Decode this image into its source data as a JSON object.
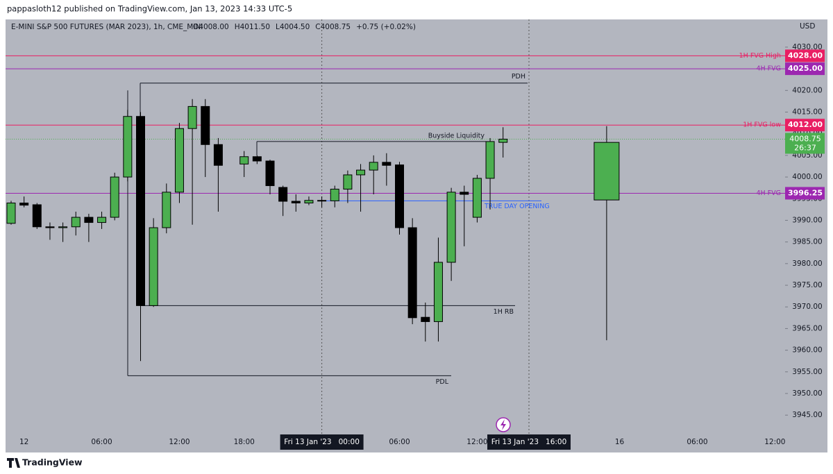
{
  "chart_data": {
    "type": "candlestick",
    "published": "pappasloth12 published on TradingView.com, Jan 13, 2023 14:33 UTC-5",
    "symbol": "E-MINI S&P 500 FUTURES (MAR 2023), 1h, CME_MINI",
    "ohlc_legend": [
      "O4008.00",
      "H4011.50",
      "L4004.50",
      "C4008.75",
      "+0.75 (+0.02%)"
    ],
    "currency": "USD",
    "brand": "TradingView",
    "up_color": "#4caf50",
    "down_color": "#000000",
    "categories": [
      null,
      "12",
      null,
      null,
      null,
      null,
      null,
      "06:00",
      null,
      null,
      null,
      null,
      null,
      "12:00",
      null,
      null,
      null,
      null,
      "18:00",
      null,
      null,
      null,
      null,
      null,
      "Fri 13 Jan '23   00:00",
      null,
      null,
      null,
      null,
      null,
      "06:00",
      null,
      null,
      null,
      null,
      null,
      "12:00",
      null,
      null,
      null,
      "Fri 13 Jan '23   16:00",
      null,
      null,
      null,
      null,
      null,
      null,
      "16",
      null,
      null,
      null,
      null,
      null,
      "06:00",
      null,
      null,
      null,
      null,
      null,
      "12:00"
    ],
    "open": [
      3989.3,
      3994,
      3993.6,
      3988.5,
      3988.3,
      3988.5,
      3990.7,
      3989.5,
      3990.7,
      4000,
      4014,
      3970.3,
      3988.3,
      3996.5,
      4011.2,
      4016.3,
      4007.5,
      null,
      4003,
      4004.7,
      4003.7,
      3997.6,
      3994.4,
      3994,
      3994.6,
      3994.5,
      3997.2,
      4000.5,
      4001.6,
      4003.4,
      4002.8,
      3988.3,
      3967.6,
      3966.6,
      3980.3,
      3996.5,
      3990.7,
      3999.7,
      4008,
      null,
      null,
      null,
      null,
      null,
      null,
      null,
      null,
      null,
      null,
      null,
      null,
      null,
      null,
      null,
      null,
      null,
      null,
      null,
      null,
      null
    ],
    "high": [
      3994.5,
      3995.5,
      3994,
      3989.5,
      3989.5,
      3992,
      3991.5,
      3992,
      4001,
      4015.5,
      4015,
      3990.5,
      3998.5,
      4012.5,
      4018,
      4018,
      4009,
      null,
      4006,
      4005,
      4004,
      3998,
      3996,
      3995.5,
      3995.5,
      3998,
      4001.5,
      4003,
      4005,
      4005.5,
      4003.5,
      3990.5,
      3971,
      3986,
      3997.5,
      3998,
      4000.5,
      4009,
      4011.5,
      null,
      null,
      null,
      null,
      null,
      null,
      null,
      null,
      null,
      null,
      null,
      null,
      null,
      null,
      null,
      null,
      null,
      null,
      null,
      null,
      null
    ],
    "low": [
      3989,
      3993,
      3988,
      3985.5,
      3985,
      3986.5,
      3985,
      3988,
      3990,
      3999,
      3957.5,
      3970,
      3987,
      3994,
      3989,
      4000,
      3992,
      null,
      4000,
      4003,
      3996,
      3991,
      3992,
      3993.5,
      3993,
      3993,
      3994,
      3992,
      3996,
      3998,
      3986.7,
      3966,
      3962,
      3962,
      3976,
      3984,
      3989.5,
      3992.5,
      4004.5,
      null,
      null,
      null,
      null,
      null,
      null,
      null,
      null,
      null,
      null,
      null,
      null,
      null,
      null,
      null,
      null,
      null,
      null,
      null,
      null,
      null
    ],
    "close": [
      3994,
      3993.5,
      3988.5,
      3988.3,
      3988.5,
      3990.7,
      3989.5,
      3990.7,
      4000,
      4014,
      3970.3,
      3988.3,
      3996.5,
      4011.2,
      4016.3,
      4007.5,
      4002.7,
      null,
      4004.7,
      4003.7,
      3998,
      3994.4,
      3994,
      3994.6,
      3994.5,
      3997.2,
      4000.5,
      4001.6,
      4003.4,
      4002.7,
      3988.3,
      3967.5,
      3966.6,
      3980.3,
      3996.5,
      3996,
      3999.7,
      4008.2,
      4008.75,
      null,
      null,
      null,
      null,
      null,
      null,
      null,
      null,
      null,
      null,
      null,
      null,
      null,
      null,
      null,
      null,
      null,
      null,
      null,
      null,
      null
    ],
    "projection": {
      "open": 3994.7,
      "high": 4011.75,
      "low": 3962.3,
      "close": 4008
    },
    "last": {
      "value": 4008.75,
      "label": "4008.75",
      "countdown": "26:37",
      "color": "#4caf50"
    },
    "levels": [
      {
        "label": "1H FVG High",
        "value": 4028,
        "value_label": "4028.00",
        "color": "#e91e63"
      },
      {
        "label": "4H FVG",
        "value": 4025,
        "value_label": "4025.00",
        "color": "#9c27b0"
      },
      {
        "label": "1H FVG low",
        "value": 4012,
        "value_label": "4012.00",
        "color": "#e91e63"
      },
      {
        "label": "4H FVG",
        "value": 3996.25,
        "value_label": "3996.25",
        "color": "#9c27b0"
      },
      {
        "label": "PDH",
        "value": 4021.7,
        "color": "#131722"
      },
      {
        "label": "Buyside Liquidity",
        "value": 4008.2,
        "color": "#131722"
      },
      {
        "label": "TRUE DAY OPENING",
        "value": 3994.5,
        "color": "#2962ff"
      },
      {
        "label": "1H RB",
        "value": 3970.3,
        "color": "#131722"
      },
      {
        "label": "PDL",
        "value": 3954.1,
        "color": "#131722"
      }
    ],
    "ylim": [
      3940.7,
      4036.4
    ],
    "yticks": [
      {
        "value": 3945,
        "label": "3945.00"
      },
      {
        "value": 3950,
        "label": "3950.00"
      },
      {
        "value": 3955,
        "label": "3955.00"
      },
      {
        "value": 3960,
        "label": "3960.00"
      },
      {
        "value": 3965,
        "label": "3965.00"
      },
      {
        "value": 3970,
        "label": "3970.00"
      },
      {
        "value": 3975,
        "label": "3975.00"
      },
      {
        "value": 3980,
        "label": "3980.00"
      },
      {
        "value": 3985,
        "label": "3985.00"
      },
      {
        "value": 3990,
        "label": "3990.00"
      },
      {
        "value": 3995,
        "label": "3995.00"
      },
      {
        "value": 4000,
        "label": "4000.00"
      },
      {
        "value": 4005,
        "label": "4005.00"
      },
      {
        "value": 4010,
        "label": "4010.00"
      },
      {
        "value": 4015,
        "label": "4015.00"
      },
      {
        "value": 4020,
        "label": "4020.00"
      },
      {
        "value": 4025,
        "label": "4025.00"
      },
      {
        "value": 4030,
        "label": "4030.00"
      }
    ]
  }
}
